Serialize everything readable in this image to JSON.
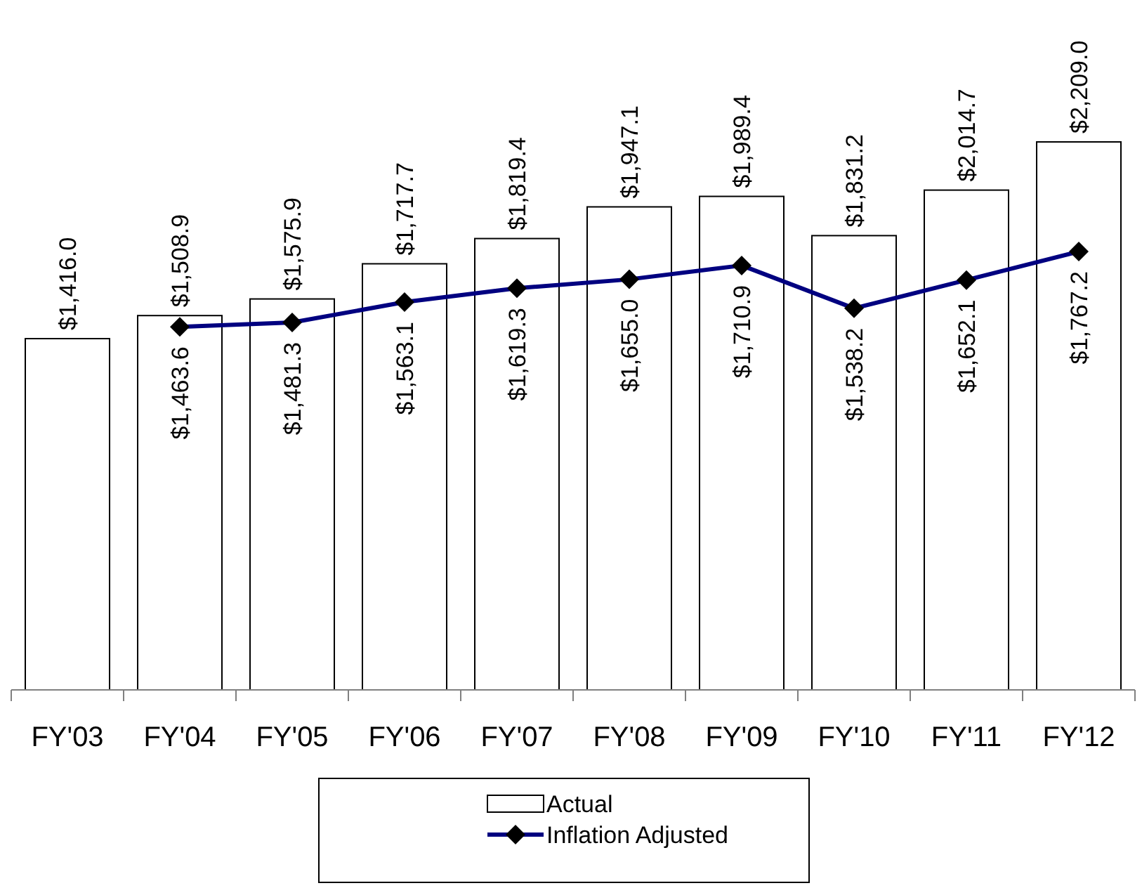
{
  "chart_data": {
    "type": "bar",
    "categories": [
      "FY'03",
      "FY'04",
      "FY'05",
      "FY'06",
      "FY'07",
      "FY'08",
      "FY'09",
      "FY'10",
      "FY'11",
      "FY'12"
    ],
    "legend": "bottom",
    "tick_labels": "x",
    "series": [
      {
        "name": "Actual",
        "color": "#ffffff",
        "values": [
          1416.0,
          1508.9,
          1575.9,
          1717.7,
          1819.4,
          1947.1,
          1989.4,
          1831.2,
          2014.7,
          2209.0
        ],
        "value_labels": [
          "$1,416.0",
          "$1,508.9",
          "$1,575.9",
          "$1,717.7",
          "$1,819.4",
          "$1,947.1",
          "$1,989.4",
          "$1,831.2",
          "$2,014.7",
          "$2,209.0"
        ]
      },
      {
        "name": "Inflation Adjusted",
        "type": "line",
        "color": "#000080",
        "marker": "diamond",
        "values": [
          null,
          1463.6,
          1481.3,
          1563.1,
          1619.3,
          1655.0,
          1710.9,
          1538.2,
          1652.1,
          1767.2
        ],
        "value_labels": [
          null,
          "$1,463.6",
          "$1,481.3",
          "$1,563.1",
          "$1,619.3",
          "$1,655.0",
          "$1,710.9",
          "$1,538.2",
          "$1,652.1",
          "$1,767.2"
        ]
      }
    ]
  }
}
